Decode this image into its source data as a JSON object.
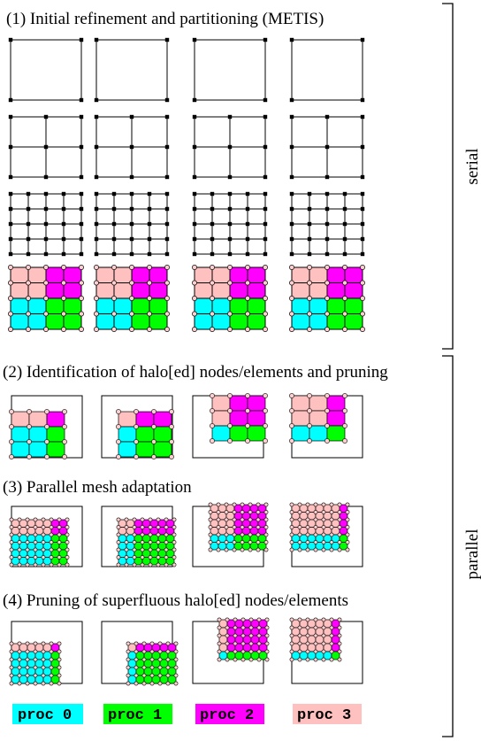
{
  "titles": {
    "step1": "(1) Initial refinement and partitioning (METIS)",
    "step2": "(2) Identification of halo[ed] nodes/elements and pruning",
    "step3": "(3) Parallel mesh adaptation",
    "step4": "(4) Pruning of superfluous halo[ed] nodes/elements"
  },
  "brackets": {
    "serial": "serial",
    "parallel": "parallel"
  },
  "legend": [
    {
      "label": "proc 0",
      "color": "#00ffff"
    },
    {
      "label": "proc 1",
      "color": "#00ff00"
    },
    {
      "label": "proc 2",
      "color": "#ff00ff"
    },
    {
      "label": "proc 3",
      "color": "#ffc0c0"
    }
  ]
}
